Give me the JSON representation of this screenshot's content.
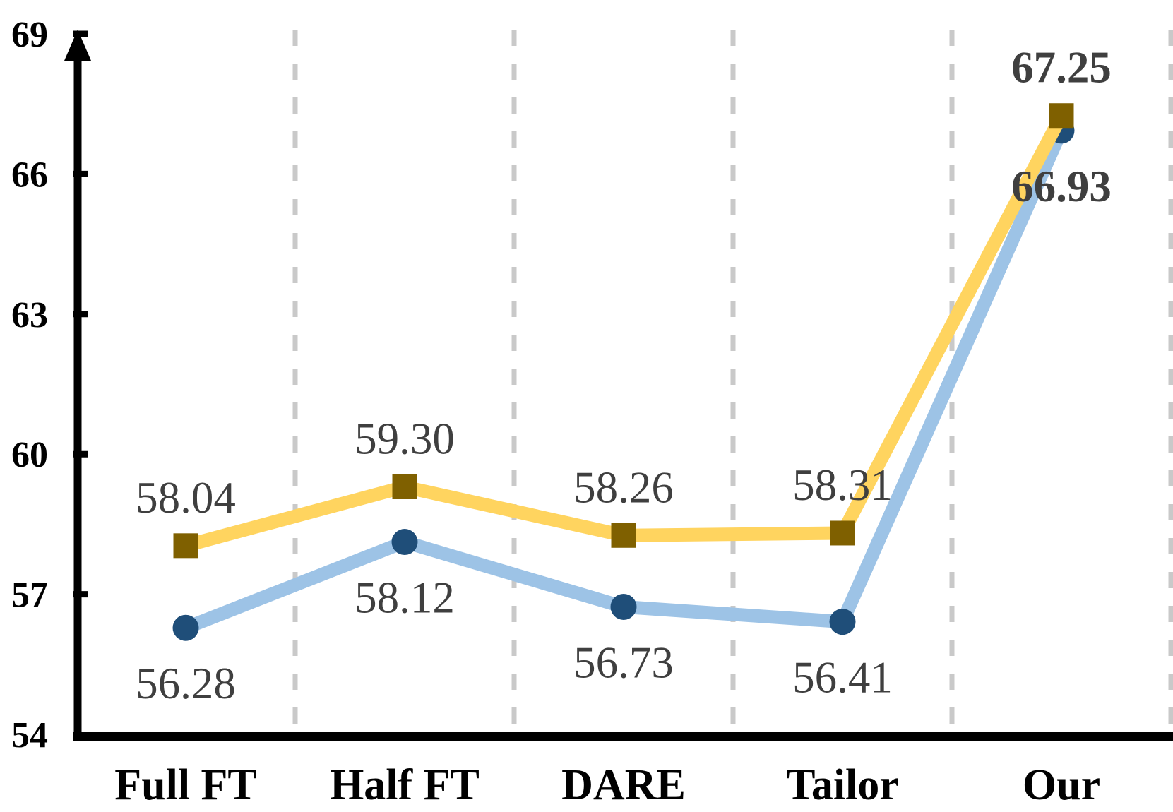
{
  "chart_data": {
    "type": "line",
    "title": "",
    "legend": "none",
    "background_color": "#FFFFFF",
    "axis_color": "#000000",
    "value_label_color": "#3F3F3F",
    "grid": {
      "style": "vertical-dashed",
      "color": "#C9C9C9"
    },
    "categories": [
      "Full FT",
      "Half FT",
      "DARE",
      "Tailor",
      "Our"
    ],
    "ylim": [
      54,
      69
    ],
    "yticks": [
      69,
      66,
      63,
      60,
      57,
      54
    ],
    "series": [
      {
        "name": "blue-series",
        "marker": "circle",
        "line_color": "#9DC3E6",
        "marker_color": "#1F4E79",
        "values": [
          56.28,
          58.12,
          56.73,
          56.41,
          66.93
        ],
        "labels": [
          "56.28",
          "58.12",
          "56.73",
          "56.41",
          "66.93"
        ],
        "label_side": [
          "below",
          "below",
          "below",
          "below",
          "below"
        ],
        "label_bold": [
          false,
          false,
          false,
          false,
          true
        ]
      },
      {
        "name": "yellow-series",
        "marker": "square",
        "line_color": "#FFD45F",
        "marker_color": "#7F6000",
        "values": [
          58.04,
          59.3,
          58.26,
          58.31,
          67.25
        ],
        "labels": [
          "58.04",
          "59.30",
          "58.26",
          "58.31",
          "67.25"
        ],
        "label_side": [
          "above",
          "above",
          "above",
          "above",
          "above"
        ],
        "label_bold": [
          false,
          false,
          false,
          false,
          true
        ]
      }
    ]
  }
}
